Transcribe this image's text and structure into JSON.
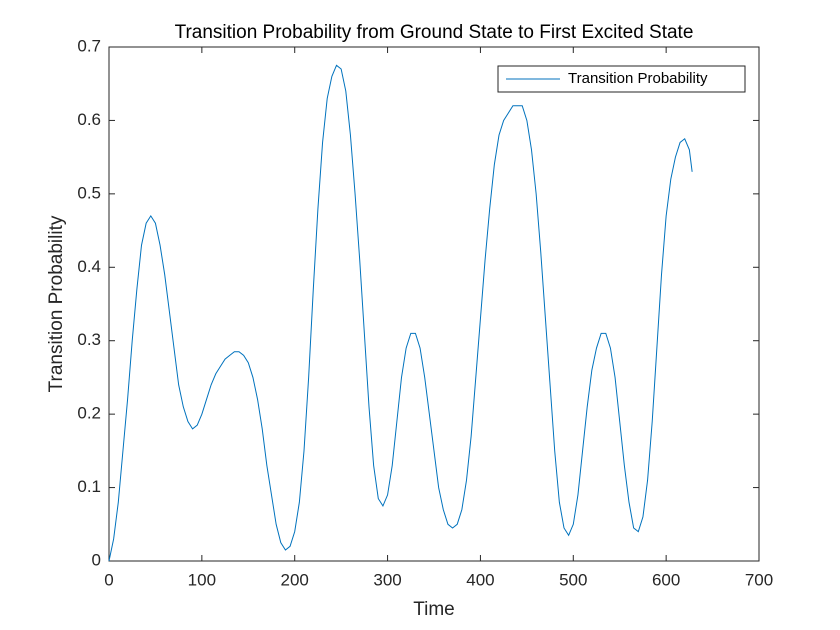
{
  "chart_data": {
    "type": "line",
    "title": "Transition Probability from Ground State to First Excited State",
    "x_label": "Time",
    "y_label": "Transition Probability",
    "xlim": [
      0,
      700
    ],
    "xticks": [
      0,
      100,
      200,
      300,
      400,
      500,
      600,
      700
    ],
    "ylim": [
      0,
      0.7
    ],
    "yticks": [
      0,
      0.1,
      0.2,
      0.3,
      0.4,
      0.5,
      0.6,
      0.7
    ],
    "legend": "northeast",
    "grid": false,
    "x": [
      0,
      5,
      10,
      15,
      20,
      25,
      30,
      35,
      40,
      45,
      50,
      55,
      60,
      65,
      70,
      75,
      80,
      85,
      90,
      95,
      100,
      105,
      110,
      115,
      120,
      125,
      130,
      135,
      140,
      145,
      150,
      155,
      160,
      165,
      170,
      175,
      180,
      185,
      190,
      195,
      200,
      205,
      210,
      215,
      220,
      225,
      230,
      235,
      240,
      245,
      250,
      255,
      260,
      265,
      270,
      275,
      280,
      285,
      290,
      295,
      300,
      305,
      310,
      315,
      320,
      325,
      330,
      335,
      340,
      345,
      350,
      355,
      360,
      365,
      370,
      375,
      380,
      385,
      390,
      395,
      400,
      405,
      410,
      415,
      420,
      425,
      430,
      435,
      440,
      445,
      450,
      455,
      460,
      465,
      470,
      475,
      480,
      485,
      490,
      495,
      500,
      505,
      510,
      515,
      520,
      525,
      530,
      535,
      540,
      545,
      550,
      555,
      560,
      565,
      570,
      575,
      580,
      585,
      590,
      595,
      600,
      605,
      610,
      615,
      620,
      625,
      628
    ],
    "series": [
      {
        "name": "Transition Probability",
        "color": "#0072bd",
        "values": [
          0,
          0.03,
          0.08,
          0.15,
          0.22,
          0.3,
          0.37,
          0.43,
          0.46,
          0.47,
          0.46,
          0.43,
          0.39,
          0.34,
          0.29,
          0.24,
          0.21,
          0.19,
          0.18,
          0.185,
          0.2,
          0.22,
          0.24,
          0.255,
          0.265,
          0.275,
          0.28,
          0.285,
          0.285,
          0.28,
          0.27,
          0.25,
          0.22,
          0.18,
          0.13,
          0.09,
          0.05,
          0.025,
          0.015,
          0.02,
          0.04,
          0.08,
          0.15,
          0.25,
          0.37,
          0.48,
          0.57,
          0.63,
          0.66,
          0.675,
          0.67,
          0.64,
          0.58,
          0.5,
          0.41,
          0.31,
          0.21,
          0.13,
          0.085,
          0.075,
          0.09,
          0.13,
          0.19,
          0.25,
          0.29,
          0.31,
          0.31,
          0.29,
          0.25,
          0.2,
          0.15,
          0.1,
          0.07,
          0.05,
          0.045,
          0.05,
          0.07,
          0.11,
          0.17,
          0.25,
          0.33,
          0.41,
          0.48,
          0.54,
          0.58,
          0.6,
          0.61,
          0.62,
          0.62,
          0.62,
          0.6,
          0.56,
          0.5,
          0.42,
          0.33,
          0.24,
          0.15,
          0.08,
          0.045,
          0.035,
          0.05,
          0.09,
          0.15,
          0.21,
          0.26,
          0.29,
          0.31,
          0.31,
          0.29,
          0.25,
          0.19,
          0.13,
          0.08,
          0.045,
          0.04,
          0.06,
          0.11,
          0.19,
          0.29,
          0.39,
          0.47,
          0.52,
          0.55,
          0.57,
          0.575,
          0.56,
          0.53
        ]
      }
    ]
  }
}
